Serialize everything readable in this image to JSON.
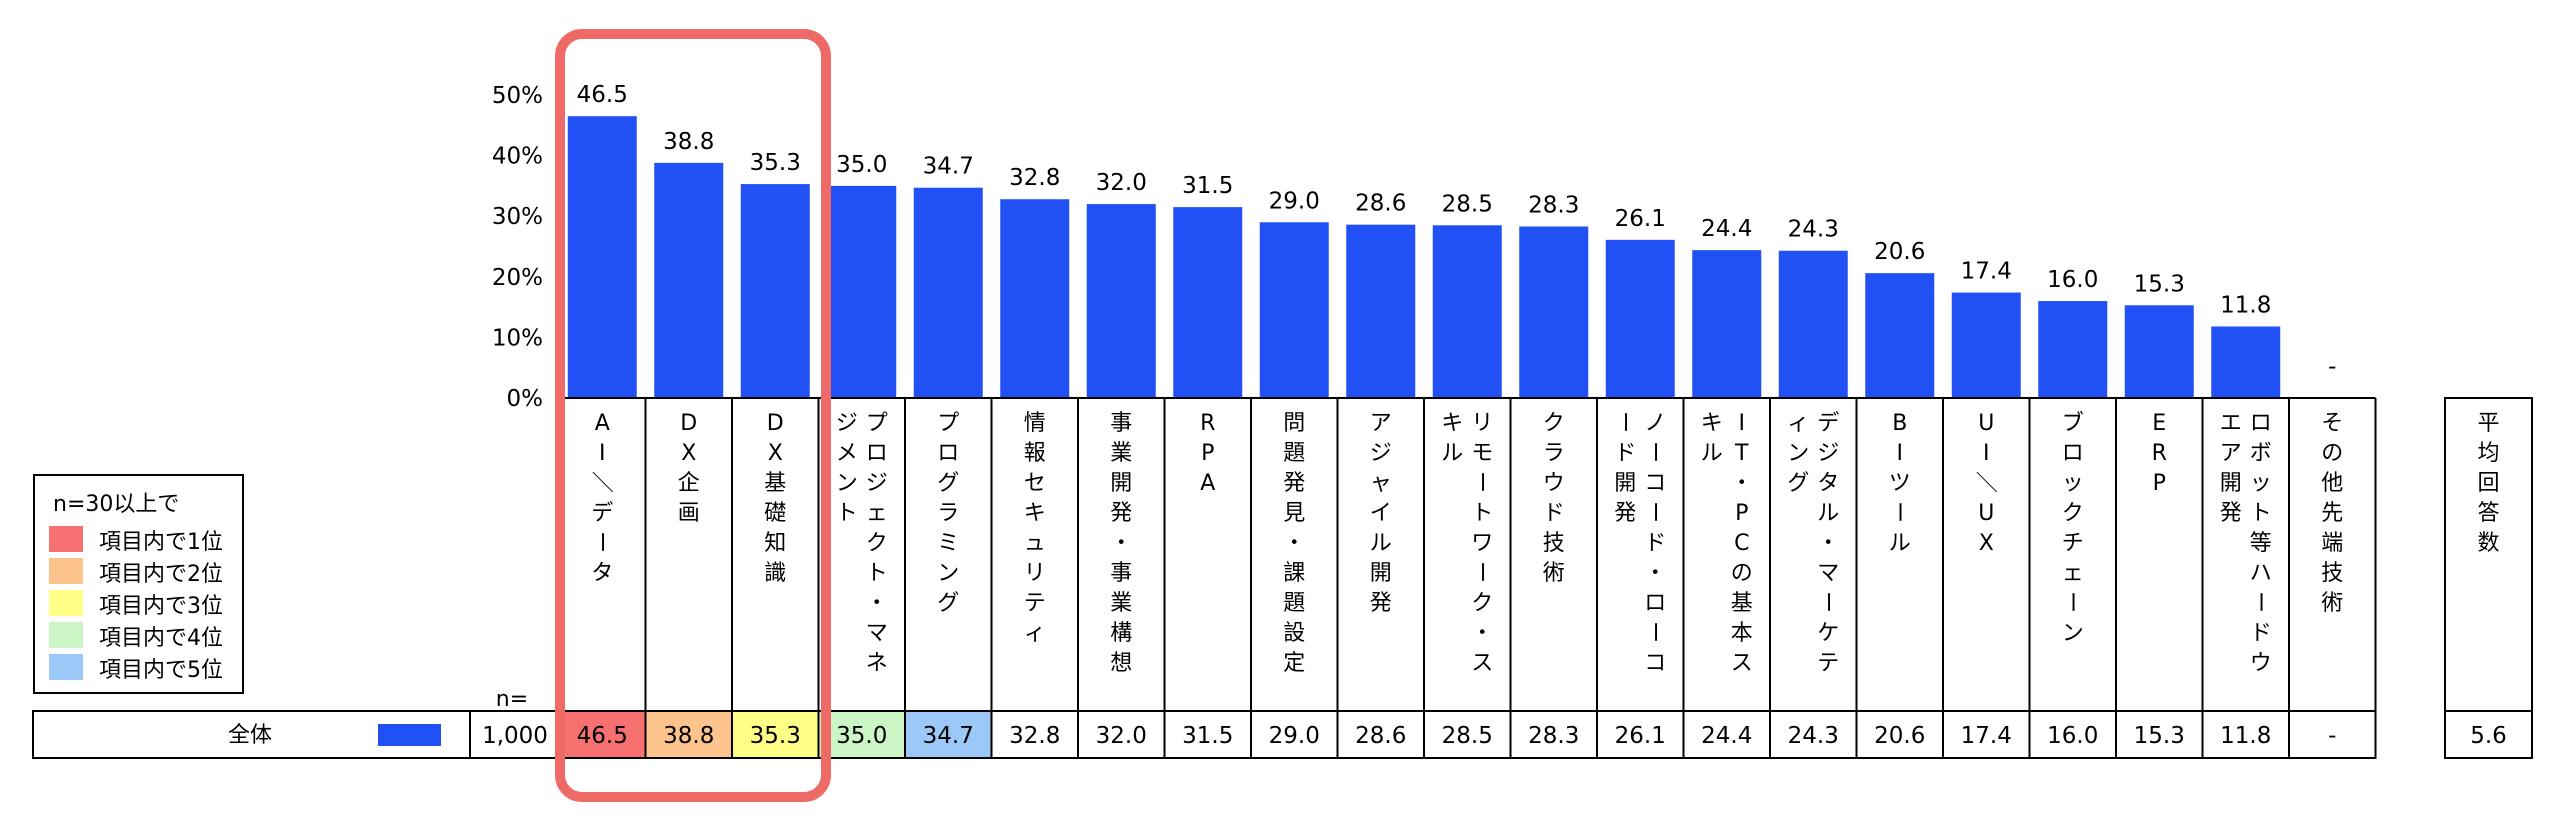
{
  "chart_data": {
    "type": "bar",
    "ylim": [
      0,
      50
    ],
    "yticks": [
      "50%",
      "40%",
      "30%",
      "20%",
      "10%",
      "0%"
    ],
    "bar_color": "#2151F5",
    "categories": [
      {
        "label": "AI／データ",
        "value": 46.5,
        "label_text": "46.5",
        "table_text": "46.5",
        "rank": 1
      },
      {
        "label": "DX企画",
        "value": 38.8,
        "label_text": "38.8",
        "table_text": "38.8",
        "rank": 2
      },
      {
        "label": "DX基礎知識",
        "value": 35.3,
        "label_text": "35.3",
        "table_text": "35.3",
        "rank": 3
      },
      {
        "label": "プロジェクト・マネジメント",
        "value": 35.0,
        "label_text": "35.0",
        "table_text": "35.0",
        "rank": 4
      },
      {
        "label": "プログラミング",
        "value": 34.7,
        "label_text": "34.7",
        "table_text": "34.7",
        "rank": 5
      },
      {
        "label": "情報セキュリティ",
        "value": 32.8,
        "label_text": "32.8",
        "table_text": "32.8",
        "rank": 0
      },
      {
        "label": "事業開発・事業構想",
        "value": 32.0,
        "label_text": "32.0",
        "table_text": "32.0",
        "rank": 0
      },
      {
        "label": "RPA",
        "value": 31.5,
        "label_text": "31.5",
        "table_text": "31.5",
        "rank": 0
      },
      {
        "label": "問題発見・課題設定",
        "value": 29.0,
        "label_text": "29.0",
        "table_text": "29.0",
        "rank": 0
      },
      {
        "label": "アジャイル開発",
        "value": 28.6,
        "label_text": "28.6",
        "table_text": "28.6",
        "rank": 0
      },
      {
        "label": "リモートワーク・スキル",
        "value": 28.5,
        "label_text": "28.5",
        "table_text": "28.5",
        "rank": 0
      },
      {
        "label": "クラウド技術",
        "value": 28.3,
        "label_text": "28.3",
        "table_text": "28.3",
        "rank": 0
      },
      {
        "label": "ノーコード・ローコード開発",
        "value": 26.1,
        "label_text": "26.1",
        "table_text": "26.1",
        "rank": 0
      },
      {
        "label": "IT・PCの基本スキル",
        "value": 24.4,
        "label_text": "24.4",
        "table_text": "24.4",
        "rank": 0
      },
      {
        "label": "デジタル・マーケティング",
        "value": 24.3,
        "label_text": "24.3",
        "table_text": "24.3",
        "rank": 0
      },
      {
        "label": "BIツール",
        "value": 20.6,
        "label_text": "20.6",
        "table_text": "20.6",
        "rank": 0
      },
      {
        "label": "UI／UX",
        "value": 17.4,
        "label_text": "17.4",
        "table_text": "17.4",
        "rank": 0
      },
      {
        "label": "ブロックチェーン",
        "value": 16.0,
        "label_text": "16.0",
        "table_text": "16.0",
        "rank": 0
      },
      {
        "label": "ERP",
        "value": 15.3,
        "label_text": "15.3",
        "table_text": "15.3",
        "rank": 0
      },
      {
        "label": "ロボット等ハードウエア開発",
        "value": 11.8,
        "label_text": "11.8",
        "table_text": "11.8",
        "rank": 0
      },
      {
        "label": "その他先端技術",
        "value": null,
        "label_text": "-",
        "table_text": "-",
        "rank": 0
      }
    ],
    "n_header": "n=",
    "row": {
      "label": "全体",
      "n": "1,000",
      "swatch_color": "#2151F5"
    },
    "avg": {
      "header": "平均回答数",
      "value": "5.6"
    },
    "legend": {
      "title": "n=30以上で",
      "items": [
        {
          "label": "項目内で1位",
          "color": "#F87171"
        },
        {
          "label": "項目内で2位",
          "color": "#FCC38D"
        },
        {
          "label": "項目内で3位",
          "color": "#FFFF88"
        },
        {
          "label": "項目内で4位",
          "color": "#CCF5C6"
        },
        {
          "label": "項目内で5位",
          "color": "#9BC8F7"
        }
      ]
    },
    "highlight_color": "#EE6A66"
  }
}
